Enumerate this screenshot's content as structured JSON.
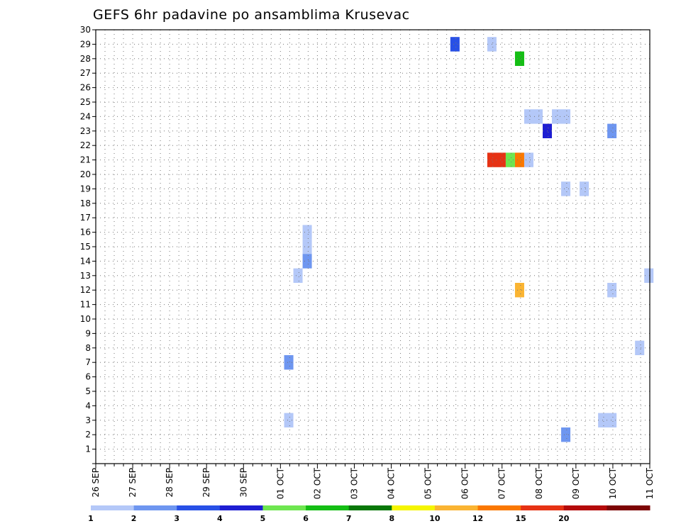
{
  "chart_data": {
    "type": "heatmap",
    "title": "GEFS 6hr padavine po ansamblima Krusevac",
    "x_tick_labels": [
      "26 SEP",
      "27 SEP",
      "28 SEP",
      "29 SEP",
      "30 SEP",
      "01 OCT",
      "02 OCT",
      "03 OCT",
      "04 OCT",
      "05 OCT",
      "06 OCT",
      "07 OCT",
      "08 OCT",
      "09 OCT",
      "10 OCT",
      "11 OCT"
    ],
    "y_tick_labels": [
      "1",
      "2",
      "3",
      "4",
      "5",
      "6",
      "7",
      "8",
      "9",
      "10",
      "11",
      "12",
      "13",
      "14",
      "15",
      "16",
      "17",
      "18",
      "19",
      "20",
      "21",
      "22",
      "23",
      "24",
      "25",
      "26",
      "27",
      "28",
      "29",
      "30"
    ],
    "xlim_days": [
      0,
      15
    ],
    "ylim": [
      0,
      30
    ],
    "grid": true,
    "colorbar": {
      "labels": [
        "1",
        "2",
        "3",
        "4",
        "5",
        "6",
        "7",
        "8",
        "10",
        "12",
        "15",
        "20"
      ],
      "colors": [
        "#b4c8f8",
        "#6e96f0",
        "#2850e6",
        "#1e1ed2",
        "#6ee650",
        "#14be14",
        "#087808",
        "#f5f500",
        "#fab432",
        "#fa7800",
        "#e63214",
        "#b40a0a",
        "#7d0505"
      ]
    },
    "cells": [
      {
        "member": 29,
        "day": 9.6,
        "days": 0.25,
        "class": 3
      },
      {
        "member": 29,
        "day": 10.6,
        "days": 0.25,
        "class": 1
      },
      {
        "member": 28,
        "day": 11.35,
        "days": 0.25,
        "class": 6
      },
      {
        "member": 24,
        "day": 11.6,
        "days": 0.5,
        "class": 1
      },
      {
        "member": 24,
        "day": 12.35,
        "days": 0.5,
        "class": 1
      },
      {
        "member": 23,
        "day": 12.1,
        "days": 0.25,
        "class": 4
      },
      {
        "member": 23,
        "day": 13.85,
        "days": 0.25,
        "class": 2
      },
      {
        "member": 21,
        "day": 10.6,
        "days": 0.5,
        "class": 11
      },
      {
        "member": 21,
        "day": 11.1,
        "days": 0.25,
        "class": 5
      },
      {
        "member": 21,
        "day": 11.35,
        "days": 0.25,
        "class": 10
      },
      {
        "member": 21,
        "day": 11.6,
        "days": 0.25,
        "class": 1
      },
      {
        "member": 19,
        "day": 12.6,
        "days": 0.25,
        "class": 1
      },
      {
        "member": 19,
        "day": 13.1,
        "days": 0.25,
        "class": 1
      },
      {
        "member": 16,
        "day": 5.6,
        "days": 0.25,
        "class": 1
      },
      {
        "member": 15,
        "day": 5.6,
        "days": 0.25,
        "class": 1
      },
      {
        "member": 14,
        "day": 5.6,
        "days": 0.25,
        "class": 2
      },
      {
        "member": 13,
        "day": 5.35,
        "days": 0.25,
        "class": 1
      },
      {
        "member": 13,
        "day": 14.85,
        "days": 0.25,
        "class": 1
      },
      {
        "member": 12,
        "day": 11.35,
        "days": 0.25,
        "class": 9
      },
      {
        "member": 12,
        "day": 13.85,
        "days": 0.25,
        "class": 1
      },
      {
        "member": 8,
        "day": 14.6,
        "days": 0.25,
        "class": 1
      },
      {
        "member": 7,
        "day": 5.1,
        "days": 0.25,
        "class": 2
      },
      {
        "member": 3,
        "day": 5.1,
        "days": 0.25,
        "class": 1
      },
      {
        "member": 3,
        "day": 13.6,
        "days": 0.5,
        "class": 1
      },
      {
        "member": 2,
        "day": 12.6,
        "days": 0.25,
        "class": 2
      }
    ]
  }
}
